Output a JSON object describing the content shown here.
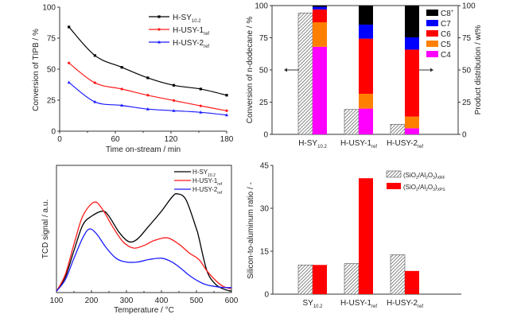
{
  "chart_data": [
    {
      "id": "tipb",
      "type": "line",
      "title": "",
      "xlabel": "Time on-stream / min",
      "ylabel": "Conversion of TIPB / %",
      "xlim": [
        0,
        180
      ],
      "ylim": [
        0,
        100
      ],
      "xticks": [
        0,
        60,
        120,
        180
      ],
      "yticks": [
        0,
        25,
        50,
        75,
        100
      ],
      "legend_position": "top-right",
      "x": [
        10,
        38,
        67,
        95,
        123,
        152,
        180
      ],
      "series": [
        {
          "name": "H-SY",
          "sub": "10.2",
          "color": "#000000",
          "marker": "square",
          "values": [
            84,
            61,
            51.5,
            43,
            37,
            34,
            29
          ]
        },
        {
          "name": "H-USY-1",
          "sub": "ref",
          "color": "#ff1a1a",
          "marker": "circle",
          "values": [
            55,
            39,
            34,
            29,
            24.7,
            20.4,
            16.5
          ]
        },
        {
          "name": "H-USY-2",
          "sub": "ref",
          "color": "#1a1aff",
          "marker": "triangle",
          "values": [
            39.3,
            23.6,
            20.8,
            17.8,
            16.5,
            15.2,
            13
          ]
        }
      ]
    },
    {
      "id": "dodecane",
      "type": "bar",
      "title": "",
      "xlabel": "",
      "ylabel": "Conversion of n-dodecane / %",
      "ylabel_right": "Product distribution / wt%",
      "ylim": [
        0,
        100
      ],
      "yticks": [
        0,
        25,
        50,
        75,
        100
      ],
      "legend_position": "top-right",
      "categories": [
        {
          "name": "H-SY",
          "sub": "10.2"
        },
        {
          "name": "H-USY-1",
          "sub": "ref"
        },
        {
          "name": "H-USY-2",
          "sub": "ref"
        }
      ],
      "conversion": {
        "name": "Conversion",
        "pattern": "hatched",
        "values": [
          94.3,
          19.3,
          7.8
        ]
      },
      "stack_series": [
        {
          "name": "C4",
          "sup": "",
          "color": "#ff00ff",
          "values": [
            68,
            20,
            4.7
          ]
        },
        {
          "name": "C5",
          "sup": "",
          "color": "#ff8000",
          "values": [
            19,
            11.5,
            9.1
          ]
        },
        {
          "name": "C6",
          "sup": "",
          "color": "#ff0000",
          "values": [
            10,
            42.8,
            52
          ]
        },
        {
          "name": "C7",
          "sup": "",
          "color": "#0000ff",
          "values": [
            2,
            10.9,
            9.5
          ]
        },
        {
          "name": "C8",
          "sup": "+",
          "color": "#000000",
          "values": [
            1,
            14.8,
            24.7
          ]
        }
      ],
      "legend_order": [
        "C8",
        "C7",
        "C6",
        "C5",
        "C4"
      ],
      "annotations": [
        "left-arrow",
        "right-arrow"
      ]
    },
    {
      "id": "tpd",
      "type": "line",
      "title": "",
      "xlabel": "Temperature  / °C",
      "ylabel": "TCD signal / a.u.",
      "xlim": [
        100,
        600
      ],
      "ylim": [
        0,
        1
      ],
      "xticks": [
        100,
        200,
        300,
        400,
        500,
        600
      ],
      "yticks": [],
      "legend_position": "top-right",
      "series": [
        {
          "name": "H-SY",
          "sub": "10.2",
          "color": "#000000",
          "points": [
            [
              100,
              0.01
            ],
            [
              125,
              0.12
            ],
            [
              150,
              0.33
            ],
            [
              175,
              0.53
            ],
            [
              200,
              0.6
            ],
            [
              232,
              0.64
            ],
            [
              250,
              0.6
            ],
            [
              280,
              0.47
            ],
            [
              307,
              0.4
            ],
            [
              331,
              0.42
            ],
            [
              360,
              0.51
            ],
            [
              400,
              0.64
            ],
            [
              430,
              0.75
            ],
            [
              445,
              0.776
            ],
            [
              470,
              0.73
            ],
            [
              500,
              0.5
            ],
            [
              507,
              0.43
            ],
            [
              530,
              0.17
            ],
            [
              553,
              0.07
            ],
            [
              575,
              0.03
            ],
            [
              600,
              0.01
            ]
          ]
        },
        {
          "name": "H-USY-1",
          "sub": "ref",
          "color": "#ff1a1a",
          "points": [
            [
              100,
              0.01
            ],
            [
              125,
              0.14
            ],
            [
              150,
              0.38
            ],
            [
              175,
              0.6
            ],
            [
              207,
              0.71
            ],
            [
              230,
              0.66
            ],
            [
              260,
              0.52
            ],
            [
              290,
              0.4
            ],
            [
              320,
              0.35
            ],
            [
              350,
              0.37
            ],
            [
              380,
              0.41
            ],
            [
              417,
              0.43
            ],
            [
              450,
              0.38
            ],
            [
              480,
              0.31
            ],
            [
              507,
              0.26
            ],
            [
              530,
              0.17
            ],
            [
              553,
              0.1
            ],
            [
              575,
              0.05
            ],
            [
              598,
              0.03
            ]
          ]
        },
        {
          "name": "H-USY-2",
          "sub": "ref",
          "color": "#1a1aff",
          "points": [
            [
              100,
              0.01
            ],
            [
              125,
              0.1
            ],
            [
              150,
              0.27
            ],
            [
              175,
              0.43
            ],
            [
              194,
              0.5
            ],
            [
              215,
              0.46
            ],
            [
              240,
              0.36
            ],
            [
              270,
              0.27
            ],
            [
              300,
              0.24
            ],
            [
              331,
              0.24
            ],
            [
              365,
              0.26
            ],
            [
              401,
              0.27
            ],
            [
              430,
              0.24
            ],
            [
              460,
              0.18
            ],
            [
              477,
              0.14
            ],
            [
              505,
              0.09
            ],
            [
              530,
              0.06
            ],
            [
              575,
              0.04
            ],
            [
              600,
              0.04
            ]
          ]
        }
      ]
    },
    {
      "id": "sar",
      "type": "bar",
      "title": "",
      "xlabel": "",
      "ylabel": "Silicon-to-aluminum ratio  / -",
      "ylim": [
        0,
        45
      ],
      "yticks": [
        0,
        15,
        30,
        45
      ],
      "legend_position": "top-right",
      "categories": [
        {
          "name": "SY",
          "sub": "10.2"
        },
        {
          "name": "H-USY-1",
          "sub": "ref"
        },
        {
          "name": "H-USY-2",
          "sub": "ref"
        }
      ],
      "series": [
        {
          "name": "(SiO2/Al2O3)XRF",
          "label_main": "(SiO",
          "sub1": "2",
          "mid": "/Al",
          "sub2": "2",
          "mid2": "O",
          "sub3": "3",
          "end": ")",
          "sub4": "XRF",
          "pattern": "hatched",
          "color": "#d9d9d9",
          "values": [
            10.2,
            10.7,
            13.8
          ]
        },
        {
          "name": "(SiO2/Al2O3)XPS",
          "label_main": "(SiO",
          "sub1": "2",
          "mid": "/Al",
          "sub2": "2",
          "mid2": "O",
          "sub3": "3",
          "end": ")",
          "sub4": "XPS",
          "pattern": "solid",
          "color": "#ff0000",
          "values": [
            10.2,
            40.5,
            8.1
          ]
        }
      ]
    }
  ]
}
